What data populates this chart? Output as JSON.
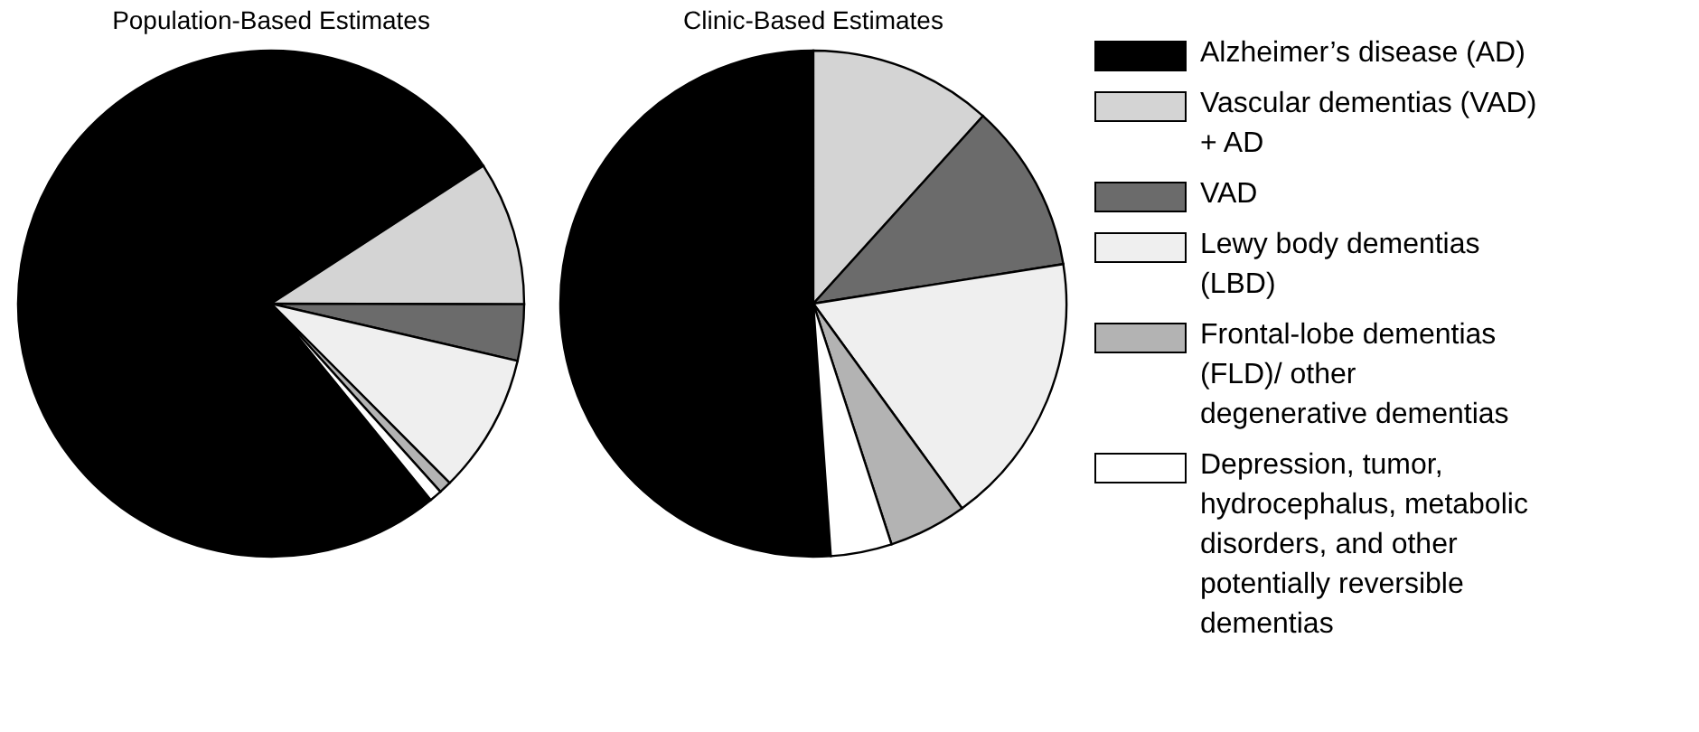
{
  "chart_data": [
    {
      "type": "pie",
      "title": "Population-Based Estimates",
      "categories": [
        "Alzheimer’s disease (AD)",
        "Vascular dementias (VAD) + AD",
        "VAD",
        "Lewy body dementias (LBD)",
        "Frontal-lobe dementias (FLD)/ other degenerative dementias",
        "Depression, tumor, hydrocephalus, metabolic disorders, and other potentially reversible dementias"
      ],
      "values": [
        76.7,
        9.2,
        3.6,
        8.9,
        0.8,
        0.8
      ],
      "colors": [
        "#000000",
        "#d4d4d4",
        "#6b6b6b",
        "#efefef",
        "#b3b3b3",
        "#ffffff"
      ],
      "legend": "right"
    },
    {
      "type": "pie",
      "title": "Clinic-Based Estimates",
      "categories": [
        null,
        null,
        null,
        null,
        null,
        null
      ],
      "values": [
        51.1,
        11.7,
        10.8,
        17.5,
        5.0,
        3.9
      ],
      "colors": [
        "#000000",
        "#d4d4d4",
        "#6b6b6b",
        "#efefef",
        "#b3b3b3",
        "#ffffff"
      ]
    }
  ]
}
